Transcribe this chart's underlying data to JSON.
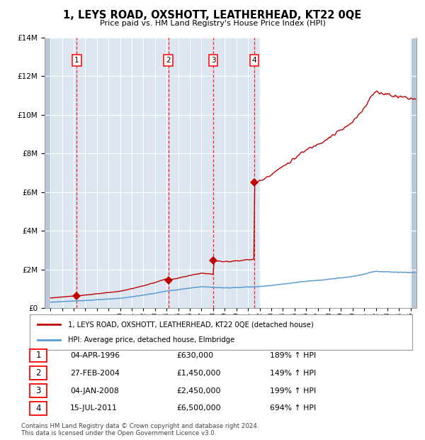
{
  "title": "1, LEYS ROAD, OXSHOTT, LEATHERHEAD, KT22 0QE",
  "subtitle": "Price paid vs. HM Land Registry's House Price Index (HPI)",
  "transactions": [
    {
      "num": 1,
      "date": 1996.26,
      "price": 630000,
      "label": "04-APR-1996",
      "pct": "189%",
      "hpi_rel": "HPI"
    },
    {
      "num": 2,
      "date": 2004.15,
      "price": 1450000,
      "label": "27-FEB-2004",
      "pct": "149%",
      "hpi_rel": "HPI"
    },
    {
      "num": 3,
      "date": 2008.01,
      "price": 2450000,
      "label": "04-JAN-2008",
      "pct": "199%",
      "hpi_rel": "HPI"
    },
    {
      "num": 4,
      "date": 2011.54,
      "price": 6500000,
      "label": "15-JUL-2011",
      "pct": "694%",
      "hpi_rel": "HPI"
    }
  ],
  "hpi_line_color": "#5b9bd5",
  "price_line_color": "#c00000",
  "marker_color": "#c00000",
  "vline_color": "#ff0000",
  "background_shaded": "#dce6f1",
  "background_right": "#ffffff",
  "grid_color": "#ffffff",
  "ylim": [
    0,
    14000000
  ],
  "xlim_left": 1993.5,
  "xlim_right": 2025.5,
  "shade_end": 2012.0,
  "legend_label_red": "1, LEYS ROAD, OXSHOTT, LEATHERHEAD, KT22 0QE (detached house)",
  "legend_label_blue": "HPI: Average price, detached house, Elmbridge",
  "table": [
    {
      "num": "1",
      "date": "04-APR-1996",
      "price": "£630,000",
      "pct": "189% ↑ HPI"
    },
    {
      "num": "2",
      "date": "27-FEB-2004",
      "price": "£1,450,000",
      "pct": "149% ↑ HPI"
    },
    {
      "num": "3",
      "date": "04-JAN-2008",
      "price": "£2,450,000",
      "pct": "199% ↑ HPI"
    },
    {
      "num": "4",
      "date": "15-JUL-2011",
      "price": "£6,500,000",
      "pct": "694% ↑ HPI"
    }
  ],
  "footer": "Contains HM Land Registry data © Crown copyright and database right 2024.\nThis data is licensed under the Open Government Licence v3.0."
}
